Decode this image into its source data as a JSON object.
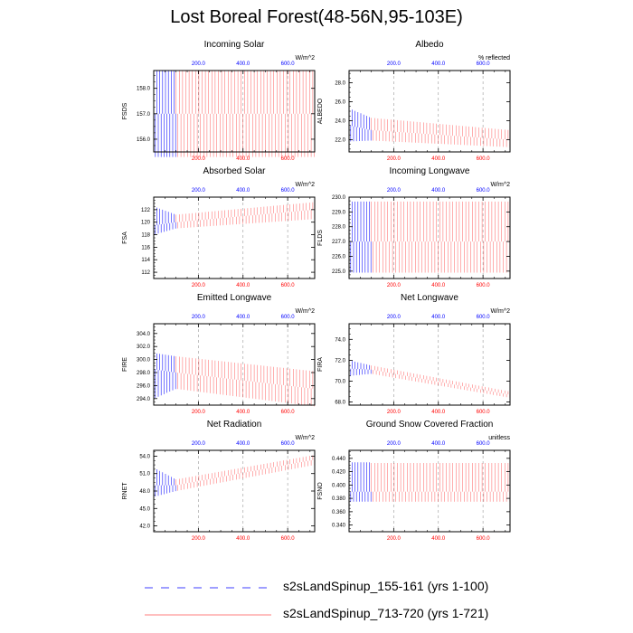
{
  "figure": {
    "title": "Lost Boreal Forest(48-56N,95-103E)"
  },
  "legend": {
    "entries": [
      {
        "label": "s2sLandSpinup_155-161 (yrs 1-100)",
        "color": "#0000ff",
        "style": "dashed"
      },
      {
        "label": "s2sLandSpinup_713-720 (yrs 1-721)",
        "color": "#ff0000",
        "style": "solid"
      }
    ]
  },
  "chart_data": [
    {
      "type": "line",
      "title": "Incoming Solar",
      "ylabel": "FSDS",
      "units": "W/m^2",
      "xlim": [
        0,
        721
      ],
      "ylim": [
        155.5,
        158.7
      ],
      "top_ticks": [
        "200.0",
        "400.0",
        "600.0"
      ],
      "bottom_ticks": [
        "200.0",
        "400.0",
        "600.0"
      ],
      "yticks": [
        156.0,
        157.0,
        158.0
      ],
      "ytick_labels": [
        "156.0",
        "157.0",
        "158.0"
      ],
      "series": [
        {
          "name": "s2sLandSpinup_155-161 (yrs 1-100)",
          "color": "#0000ff",
          "x_range": [
            1,
            100
          ],
          "low": [
            155.3,
            155.3
          ],
          "high": [
            158.7,
            158.7
          ],
          "mean": [
            157.0,
            157.0
          ]
        },
        {
          "name": "s2sLandSpinup_713-720 (yrs 1-721)",
          "color": "#ff0000",
          "x_range": [
            100,
            721
          ],
          "low": [
            155.3,
            155.3
          ],
          "high": [
            158.7,
            158.7
          ],
          "mean": [
            157.0,
            157.0
          ]
        }
      ]
    },
    {
      "type": "line",
      "title": "Albedo",
      "ylabel": "ALBEDO",
      "units": "% reflected",
      "xlim": [
        0,
        721
      ],
      "ylim": [
        20.7,
        29.3
      ],
      "top_ticks": [
        "200.0",
        "400.0",
        "600.0"
      ],
      "bottom_ticks": [
        "200.0",
        "400.0",
        "600.0"
      ],
      "yticks": [
        22.0,
        24.0,
        26.0,
        28.0
      ],
      "ytick_labels": [
        "22.0",
        "24.0",
        "26.0",
        "28.0"
      ],
      "series": [
        {
          "name": "s2sLandSpinup_155-161 (yrs 1-100)",
          "color": "#0000ff",
          "x_range": [
            1,
            100
          ],
          "low": [
            21.8,
            21.9
          ],
          "high": [
            25.3,
            24.3
          ],
          "mean": [
            23.5,
            23.0
          ]
        },
        {
          "name": "s2sLandSpinup_713-720 (yrs 1-721)",
          "color": "#ff0000",
          "x_range": [
            100,
            721
          ],
          "low": [
            21.9,
            21.2
          ],
          "high": [
            24.3,
            23.0
          ],
          "mean": [
            23.0,
            22.0
          ]
        }
      ]
    },
    {
      "type": "line",
      "title": "Absorbed Solar",
      "ylabel": "FSA",
      "units": "W/m^2",
      "xlim": [
        0,
        721
      ],
      "ylim": [
        111,
        124
      ],
      "top_ticks": [
        "200.0",
        "400.0",
        "600.0"
      ],
      "bottom_ticks": [
        "200.0",
        "400.0",
        "600.0"
      ],
      "yticks": [
        112,
        114,
        116,
        118,
        120,
        122
      ],
      "ytick_labels": [
        "112",
        "114",
        "116",
        "118",
        "120",
        "122"
      ],
      "series": [
        {
          "name": "s2sLandSpinup_155-161 (yrs 1-100)",
          "color": "#0000ff",
          "x_range": [
            1,
            100
          ],
          "low": [
            118.0,
            119.0
          ],
          "high": [
            122.5,
            121.2
          ],
          "mean": [
            119.5,
            120.0
          ]
        },
        {
          "name": "s2sLandSpinup_713-720 (yrs 1-721)",
          "color": "#ff0000",
          "x_range": [
            100,
            721
          ],
          "low": [
            119.0,
            120.5
          ],
          "high": [
            121.2,
            123.2
          ],
          "mean": [
            120.0,
            122.0
          ]
        }
      ]
    },
    {
      "type": "line",
      "title": "Incoming Longwave",
      "ylabel": "FLDS",
      "units": "W/m^2",
      "xlim": [
        0,
        721
      ],
      "ylim": [
        224.5,
        230
      ],
      "top_ticks": [
        "200.0",
        "400.0",
        "600.0"
      ],
      "bottom_ticks": [
        "200.0",
        "400.0",
        "600.0"
      ],
      "yticks": [
        225.0,
        226.0,
        227.0,
        228.0,
        229.0,
        230.0
      ],
      "ytick_labels": [
        "225.0",
        "226.0",
        "227.0",
        "228.0",
        "229.0",
        "230.0"
      ],
      "series": [
        {
          "name": "s2sLandSpinup_155-161 (yrs 1-100)",
          "color": "#0000ff",
          "x_range": [
            1,
            100
          ],
          "low": [
            224.9,
            224.9
          ],
          "high": [
            229.7,
            229.7
          ],
          "mean": [
            227.0,
            227.0
          ]
        },
        {
          "name": "s2sLandSpinup_713-720 (yrs 1-721)",
          "color": "#ff0000",
          "x_range": [
            100,
            721
          ],
          "low": [
            224.9,
            224.9
          ],
          "high": [
            229.7,
            229.7
          ],
          "mean": [
            227.0,
            227.0
          ]
        }
      ]
    },
    {
      "type": "line",
      "title": "Emitted Longwave",
      "ylabel": "FIRE",
      "units": "W/m^2",
      "xlim": [
        0,
        721
      ],
      "ylim": [
        293,
        305.5
      ],
      "top_ticks": [
        "200.0",
        "400.0",
        "600.0"
      ],
      "bottom_ticks": [
        "200.0",
        "400.0",
        "600.0"
      ],
      "yticks": [
        294.0,
        296.0,
        298.0,
        300.0,
        302.0,
        304.0
      ],
      "ytick_labels": [
        "294.0",
        "296.0",
        "298.0",
        "300.0",
        "302.0",
        "304.0"
      ],
      "series": [
        {
          "name": "s2sLandSpinup_155-161 (yrs 1-100)",
          "color": "#0000ff",
          "x_range": [
            1,
            100
          ],
          "low": [
            294.0,
            295.5
          ],
          "high": [
            301.0,
            300.5
          ],
          "mean": [
            298.5,
            298.0
          ]
        },
        {
          "name": "s2sLandSpinup_713-720 (yrs 1-721)",
          "color": "#ff0000",
          "x_range": [
            100,
            721
          ],
          "low": [
            295.5,
            292.8
          ],
          "high": [
            300.5,
            298.2
          ],
          "mean": [
            298.0,
            295.5
          ]
        }
      ]
    },
    {
      "type": "line",
      "title": "Net Longwave",
      "ylabel": "FIRA",
      "units": "W/m^2",
      "xlim": [
        0,
        721
      ],
      "ylim": [
        67.7,
        75.5
      ],
      "top_ticks": [
        "200.0",
        "400.0",
        "600.0"
      ],
      "bottom_ticks": [
        "200.0",
        "400.0",
        "600.0"
      ],
      "yticks": [
        68.0,
        70.0,
        72.0,
        74.0
      ],
      "ytick_labels": [
        "68.0",
        "70.0",
        "72.0",
        "74.0"
      ],
      "series": [
        {
          "name": "s2sLandSpinup_155-161 (yrs 1-100)",
          "color": "#0000ff",
          "x_range": [
            1,
            100
          ],
          "low": [
            70.5,
            70.7
          ],
          "high": [
            72.0,
            71.5
          ],
          "mean": [
            71.2,
            71.1
          ]
        },
        {
          "name": "s2sLandSpinup_713-720 (yrs 1-721)",
          "color": "#ff0000",
          "x_range": [
            100,
            721
          ],
          "low": [
            70.7,
            68.4
          ],
          "high": [
            71.5,
            69.0
          ],
          "mean": [
            71.1,
            68.7
          ]
        }
      ]
    },
    {
      "type": "line",
      "title": "Net Radiation",
      "ylabel": "RNET",
      "units": "W/m^2",
      "xlim": [
        0,
        721
      ],
      "ylim": [
        41,
        55
      ],
      "top_ticks": [
        "200.0",
        "400.0",
        "600.0"
      ],
      "bottom_ticks": [
        "200.0",
        "400.0",
        "600.0"
      ],
      "yticks": [
        42.0,
        45.0,
        48.0,
        51.0,
        54.0
      ],
      "ytick_labels": [
        "42.0",
        "45.0",
        "48.0",
        "51.0",
        "54.0"
      ],
      "series": [
        {
          "name": "s2sLandSpinup_155-161 (yrs 1-100)",
          "color": "#0000ff",
          "x_range": [
            1,
            100
          ],
          "low": [
            47.0,
            48.0
          ],
          "high": [
            52.0,
            50.0
          ],
          "mean": [
            49.0,
            49.0
          ]
        },
        {
          "name": "s2sLandSpinup_713-720 (yrs 1-721)",
          "color": "#ff0000",
          "x_range": [
            100,
            721
          ],
          "low": [
            48.0,
            52.5
          ],
          "high": [
            50.0,
            54.2
          ],
          "mean": [
            49.0,
            53.4
          ]
        }
      ]
    },
    {
      "type": "line",
      "title": "Ground Snow Covered Fraction",
      "ylabel": "FSNO",
      "units": "unitless",
      "xlim": [
        0,
        721
      ],
      "ylim": [
        0.33,
        0.452
      ],
      "top_ticks": [
        "200.0",
        "400.0",
        "600.0"
      ],
      "bottom_ticks": [
        "200.0",
        "400.0",
        "600.0"
      ],
      "yticks": [
        0.34,
        0.36,
        0.38,
        0.4,
        0.42,
        0.44
      ],
      "ytick_labels": [
        "0.340",
        "0.360",
        "0.380",
        "0.400",
        "0.420",
        "0.440"
      ],
      "series": [
        {
          "name": "s2sLandSpinup_155-161 (yrs 1-100)",
          "color": "#0000ff",
          "x_range": [
            1,
            100
          ],
          "low": [
            0.375,
            0.375
          ],
          "high": [
            0.434,
            0.434
          ],
          "mean": [
            0.39,
            0.39
          ]
        },
        {
          "name": "s2sLandSpinup_713-720 (yrs 1-721)",
          "color": "#ff0000",
          "x_range": [
            100,
            721
          ],
          "low": [
            0.375,
            0.375
          ],
          "high": [
            0.433,
            0.433
          ],
          "mean": [
            0.39,
            0.39
          ]
        }
      ]
    }
  ]
}
